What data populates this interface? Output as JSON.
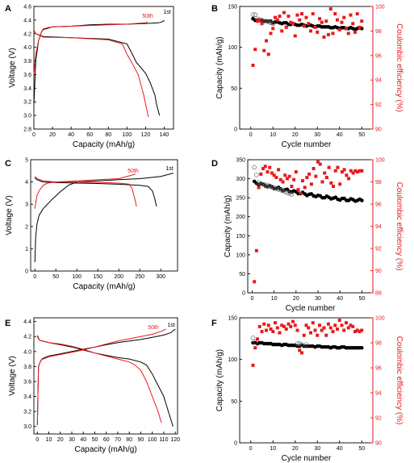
{
  "chart_data": [
    {
      "panel": "A",
      "type": "line",
      "xlabel": "Capacity (mAh/g)",
      "ylabel": "Voltage (V)",
      "xlim": [
        0,
        150
      ],
      "ylim": [
        2.8,
        4.6
      ],
      "xticks": [
        0,
        20,
        40,
        60,
        80,
        100,
        120,
        140
      ],
      "yticks": [
        2.8,
        3.0,
        3.2,
        3.4,
        3.6,
        3.8,
        4.0,
        4.2,
        4.4,
        4.6
      ],
      "annotations": [
        {
          "text": "50th",
          "color": "#e8191d"
        },
        {
          "text": "1st",
          "color": "#000000"
        }
      ],
      "series": [
        {
          "color": "#000000",
          "label_ref": "1st",
          "x": [
            0,
            2,
            5,
            8,
            10,
            15,
            20,
            40,
            60,
            80,
            100,
            120,
            134,
            139,
            140
          ],
          "y": [
            3.15,
            3.8,
            4.1,
            4.22,
            4.26,
            4.28,
            4.3,
            4.31,
            4.33,
            4.34,
            4.34,
            4.35,
            4.36,
            4.38,
            4.4
          ]
        },
        {
          "color": "#000000",
          "label_ref": "1st",
          "x": [
            0,
            2,
            10,
            40,
            80,
            100,
            105,
            110,
            120,
            125,
            130,
            132,
            135
          ],
          "y": [
            4.25,
            4.2,
            4.16,
            4.14,
            4.12,
            4.05,
            3.92,
            3.78,
            3.62,
            3.48,
            3.3,
            3.15,
            3.0
          ]
        },
        {
          "color": "#e8191d",
          "label_ref": "50th",
          "x": [
            0,
            2,
            5,
            8,
            10,
            15,
            20,
            40,
            60,
            80,
            100,
            120,
            122
          ],
          "y": [
            3.6,
            3.9,
            4.1,
            4.22,
            4.27,
            4.29,
            4.3,
            4.31,
            4.32,
            4.33,
            4.34,
            4.36,
            4.37
          ]
        },
        {
          "color": "#e8191d",
          "label_ref": "50th",
          "x": [
            0,
            2,
            10,
            40,
            80,
            95,
            100,
            105,
            112,
            115,
            118,
            121,
            123
          ],
          "y": [
            4.25,
            4.2,
            4.15,
            4.14,
            4.11,
            4.05,
            3.9,
            3.78,
            3.6,
            3.45,
            3.3,
            3.1,
            2.98
          ]
        }
      ]
    },
    {
      "panel": "B",
      "type": "scatter",
      "xlabel": "Cycle number",
      "ylabel": "Capacity (mAh/g)",
      "y2label": "Coulombic efficiency (%)",
      "xlim": [
        -5,
        55
      ],
      "ylim": [
        0,
        150
      ],
      "y2lim": [
        90,
        100
      ],
      "xticks": [
        0,
        10,
        20,
        30,
        40,
        50
      ],
      "yticks": [
        0,
        50,
        100,
        150
      ],
      "y2ticks": [
        90,
        92,
        94,
        96,
        98,
        100
      ],
      "series": [
        {
          "name": "",
          "marker": "filled-circle",
          "color": "#000000",
          "axis": "left",
          "cycles": "1-50",
          "values_start": 134,
          "values_end": 123
        },
        {
          "name": "",
          "marker": "open-circle",
          "color": "#666666",
          "axis": "left",
          "x": [
            1,
            2,
            3,
            4,
            5,
            6,
            7,
            8,
            9,
            10
          ],
          "y": [
            140,
            140,
            135,
            134,
            133,
            132,
            132,
            131,
            130,
            129
          ]
        },
        {
          "name": "",
          "marker": "square",
          "color": "#e8191d",
          "axis": "right",
          "x": [
            1,
            2,
            3,
            4,
            5,
            6,
            7,
            8,
            9,
            10,
            11,
            12,
            13,
            14,
            15,
            16,
            17,
            18,
            19,
            20,
            21,
            22,
            23,
            24,
            25,
            26,
            27,
            28,
            29,
            30,
            31,
            32,
            33,
            34,
            35,
            36,
            37,
            38,
            39,
            40,
            41,
            42,
            43,
            44,
            45,
            46,
            47,
            48,
            49,
            50
          ],
          "y": [
            95.2,
            96.5,
            98.8,
            98.9,
            98.6,
            96.4,
            97.2,
            96.1,
            97.8,
            98.2,
            99.1,
            98.9,
            99.2,
            98.0,
            99.5,
            98.3,
            99.2,
            98.7,
            98.6,
            97.6,
            99.3,
            98.9,
            99.4,
            98.4,
            99.1,
            98.6,
            98.0,
            99.4,
            98.3,
            97.9,
            99.0,
            98.7,
            97.5,
            98.8,
            97.7,
            99.8,
            97.8,
            99.4,
            98.9,
            98.1,
            98.7,
            99.1,
            98.2,
            97.8,
            99.3,
            98.6,
            97.9,
            99.4,
            98.3,
            98.8
          ]
        }
      ]
    },
    {
      "panel": "C",
      "type": "line",
      "xlabel": "Capacity (mAh/g)",
      "ylabel": "Voltage (V)",
      "xlim": [
        -10,
        340
      ],
      "ylim": [
        0,
        5
      ],
      "xticks": [
        0,
        50,
        100,
        150,
        200,
        250,
        300
      ],
      "yticks": [
        0,
        1,
        2,
        3,
        4,
        5
      ],
      "annotations": [
        {
          "text": "50th",
          "color": "#e8191d"
        },
        {
          "text": "1st",
          "color": "#000000"
        }
      ],
      "series": [
        {
          "color": "#000000",
          "label_ref": "1st",
          "x": [
            0,
            2,
            5,
            10,
            20,
            40,
            60,
            80,
            100,
            150,
            200,
            250,
            300,
            330
          ],
          "y": [
            0.4,
            1.5,
            2.1,
            2.5,
            2.8,
            3.2,
            3.55,
            3.85,
            4.0,
            4.05,
            4.1,
            4.15,
            4.25,
            4.4
          ]
        },
        {
          "color": "#000000",
          "label_ref": "1st",
          "x": [
            0,
            5,
            20,
            50,
            100,
            150,
            200,
            250,
            270,
            280,
            285,
            290
          ],
          "y": [
            4.2,
            4.1,
            4.0,
            3.98,
            3.95,
            3.93,
            3.9,
            3.85,
            3.8,
            3.6,
            3.3,
            2.9
          ]
        },
        {
          "color": "#e8191d",
          "label_ref": "50th",
          "x": [
            0,
            5,
            10,
            20,
            30,
            50,
            100,
            150,
            200,
            240
          ],
          "y": [
            2.8,
            3.4,
            3.6,
            3.85,
            3.95,
            4.0,
            4.05,
            4.1,
            4.15,
            4.35
          ]
        },
        {
          "color": "#e8191d",
          "label_ref": "50th",
          "x": [
            0,
            5,
            20,
            50,
            100,
            150,
            200,
            225,
            232,
            236,
            240,
            242
          ],
          "y": [
            4.25,
            4.15,
            4.05,
            4.0,
            4.0,
            3.98,
            3.95,
            3.9,
            3.7,
            3.4,
            3.1,
            2.9
          ]
        }
      ]
    },
    {
      "panel": "D",
      "type": "scatter",
      "xlabel": "Cycle number",
      "ylabel": "Capacity (mAh/g)",
      "y2label": "Coulombic efficiency (%)",
      "xlim": [
        -2,
        55
      ],
      "ylim": [
        0,
        350
      ],
      "y2lim": [
        88,
        100
      ],
      "xticks": [
        0,
        10,
        20,
        30,
        40,
        50
      ],
      "yticks": [
        0,
        50,
        100,
        150,
        200,
        250,
        300,
        350
      ],
      "y2ticks": [
        88,
        90,
        92,
        94,
        96,
        98,
        100
      ],
      "series": [
        {
          "name": "",
          "marker": "filled-circle",
          "color": "#000000",
          "axis": "left",
          "cycles": "1-50",
          "values_start": 290,
          "values_end": 243
        },
        {
          "name": "",
          "marker": "open-circle",
          "color": "#666666",
          "axis": "left",
          "x": [
            1,
            2,
            3,
            4,
            5,
            6,
            7,
            8,
            9,
            10,
            11,
            12,
            13,
            14,
            15,
            16,
            17,
            18
          ],
          "y": [
            330,
            310,
            290,
            287,
            285,
            284,
            282,
            280,
            278,
            276,
            274,
            272,
            270,
            268,
            266,
            263,
            261,
            259
          ]
        },
        {
          "name": "",
          "marker": "square",
          "color": "#e8191d",
          "axis": "right",
          "x": [
            1,
            2,
            3,
            4,
            5,
            6,
            7,
            8,
            9,
            10,
            11,
            12,
            13,
            14,
            15,
            16,
            17,
            18,
            19,
            20,
            21,
            22,
            23,
            24,
            25,
            26,
            27,
            28,
            29,
            30,
            31,
            32,
            33,
            34,
            35,
            36,
            37,
            38,
            39,
            40,
            41,
            42,
            43,
            44,
            45,
            46,
            47,
            48,
            49,
            50
          ],
          "y": [
            89.0,
            91.8,
            97.5,
            98.7,
            99.2,
            99.4,
            98.9,
            99.3,
            98.8,
            98.6,
            98.4,
            99.1,
            98.2,
            98.0,
            98.6,
            98.3,
            98.5,
            97.6,
            98.2,
            98.9,
            97.3,
            97.0,
            98.1,
            97.5,
            98.4,
            98.7,
            97.8,
            99.2,
            98.5,
            99.8,
            99.6,
            98.0,
            98.8,
            98.4,
            99.3,
            97.9,
            97.6,
            99.0,
            99.3,
            97.8,
            98.9,
            99.1,
            98.6,
            98.3,
            99.0,
            98.8,
            99.0,
            98.9,
            99.0,
            99.0
          ]
        }
      ]
    },
    {
      "panel": "E",
      "type": "line",
      "xlabel": "Capacity (mAh/g)",
      "ylabel": "Voltage (V)",
      "xlim": [
        -3,
        122
      ],
      "ylim": [
        2.9,
        4.45
      ],
      "xticks": [
        0,
        10,
        20,
        30,
        40,
        50,
        60,
        70,
        80,
        90,
        100,
        110,
        120
      ],
      "yticks": [
        3.0,
        3.2,
        3.4,
        3.6,
        3.8,
        4.0,
        4.2,
        4.4
      ],
      "annotations": [
        {
          "text": "50th",
          "color": "#e8191d"
        },
        {
          "text": "1st",
          "color": "#000000"
        }
      ],
      "series": [
        {
          "color": "#000000",
          "label_ref": "1st",
          "x": [
            0,
            1,
            3,
            5,
            10,
            20,
            30,
            40,
            50,
            60,
            70,
            80,
            90,
            100,
            110,
            116,
            120
          ],
          "y": [
            3.02,
            3.8,
            3.88,
            3.91,
            3.94,
            3.97,
            4.0,
            4.03,
            4.06,
            4.09,
            4.12,
            4.14,
            4.16,
            4.19,
            4.22,
            4.25,
            4.3
          ]
        },
        {
          "color": "#000000",
          "label_ref": "1st",
          "x": [
            0,
            2,
            10,
            20,
            30,
            40,
            50,
            60,
            70,
            80,
            90,
            95,
            100,
            105,
            110,
            113,
            116,
            118
          ],
          "y": [
            4.2,
            4.15,
            4.12,
            4.09,
            4.06,
            4.02,
            3.98,
            3.95,
            3.92,
            3.9,
            3.86,
            3.82,
            3.7,
            3.55,
            3.4,
            3.25,
            3.1,
            3.0
          ]
        },
        {
          "color": "#e8191d",
          "label_ref": "50th",
          "x": [
            0,
            1,
            3,
            5,
            10,
            20,
            30,
            40,
            50,
            60,
            70,
            80,
            90,
            100,
            108,
            112
          ],
          "y": [
            3.02,
            3.8,
            3.88,
            3.9,
            3.93,
            3.96,
            3.99,
            4.02,
            4.06,
            4.1,
            4.14,
            4.17,
            4.2,
            4.23,
            4.27,
            4.3
          ]
        },
        {
          "color": "#e8191d",
          "label_ref": "50th",
          "x": [
            0,
            2,
            10,
            20,
            30,
            40,
            50,
            60,
            70,
            80,
            85,
            90,
            95,
            100,
            105,
            108
          ],
          "y": [
            4.22,
            4.15,
            4.12,
            4.1,
            4.07,
            4.03,
            3.98,
            3.94,
            3.9,
            3.86,
            3.82,
            3.75,
            3.6,
            3.4,
            3.2,
            3.05
          ]
        }
      ]
    },
    {
      "panel": "F",
      "type": "scatter",
      "xlabel": "Cycle number",
      "ylabel": "Capacity (mAh/g)",
      "y2label": "Coulombic efficiency (%)",
      "xlim": [
        -5,
        55
      ],
      "ylim": [
        0,
        150
      ],
      "y2lim": [
        90,
        100
      ],
      "xticks": [
        0,
        10,
        20,
        30,
        40,
        50
      ],
      "yticks": [
        0,
        50,
        100,
        150
      ],
      "y2ticks": [
        90,
        92,
        94,
        96,
        98,
        100
      ],
      "series": [
        {
          "name": "",
          "marker": "filled-circle",
          "color": "#000000",
          "axis": "left",
          "cycles": "1-50",
          "values_start": 120,
          "values_end": 114
        },
        {
          "name": "",
          "marker": "open-circle",
          "color": "#666666",
          "axis": "left",
          "x": [
            1,
            2,
            21,
            22,
            23,
            25
          ],
          "y": [
            126,
            121,
            119,
            119,
            118,
            118
          ]
        },
        {
          "name": "",
          "marker": "square",
          "color": "#e8191d",
          "axis": "right",
          "x": [
            1,
            2,
            3,
            4,
            5,
            6,
            7,
            8,
            9,
            10,
            11,
            12,
            13,
            14,
            15,
            16,
            17,
            18,
            19,
            20,
            21,
            22,
            23,
            24,
            25,
            26,
            27,
            28,
            29,
            30,
            31,
            32,
            33,
            34,
            35,
            36,
            37,
            38,
            39,
            40,
            41,
            42,
            43,
            44,
            45,
            46,
            47,
            48,
            49,
            50
          ],
          "y": [
            96.2,
            97.6,
            98.3,
            99.3,
            98.9,
            99.5,
            99.0,
            99.4,
            99.1,
            98.9,
            99.6,
            99.2,
            98.8,
            99.4,
            99.3,
            99.1,
            99.5,
            99.3,
            99.7,
            99.4,
            99.0,
            97.4,
            97.2,
            98.6,
            99.4,
            99.2,
            98.8,
            99.6,
            99.0,
            98.6,
            99.4,
            99.0,
            99.2,
            98.6,
            99.5,
            99.2,
            98.9,
            99.4,
            99.1,
            99.8,
            99.4,
            99.0,
            99.6,
            99.2,
            99.4,
            99.3,
            98.9,
            99.0,
            98.9,
            99.0
          ]
        }
      ]
    }
  ]
}
